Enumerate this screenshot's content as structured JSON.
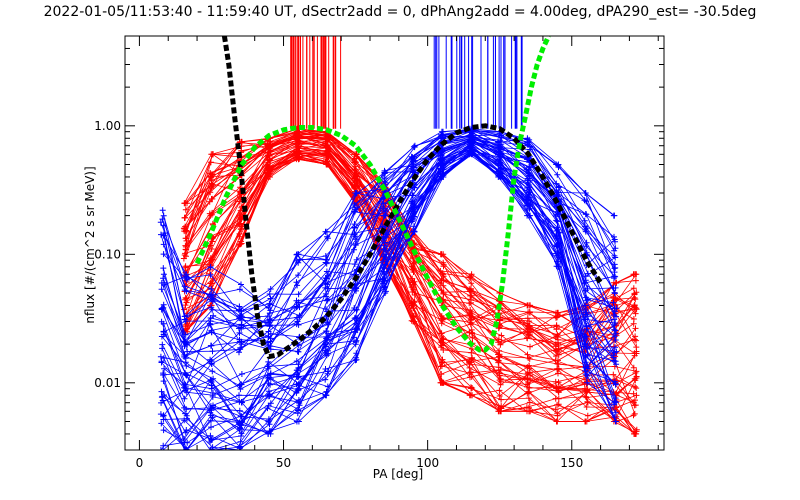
{
  "chart_data": {
    "type": "line",
    "title": "2022-01-05/11:53:40 - 11:59:40 UT, dSectr2add = 0, dPhAng2add = 4.00deg, dPA290_est= -30.5deg",
    "xlabel": "PA [deg]",
    "ylabel": "nflux [#/(cm^2 s sr MeV)]",
    "xlim": [
      -5,
      182
    ],
    "ylim": [
      0.003,
      5.0
    ],
    "yscale": "log",
    "grid": false,
    "x_ticks": [
      0,
      50,
      100,
      150
    ],
    "x_tick_labels": [
      "0",
      "50",
      "100",
      "150"
    ],
    "y_ticks": [
      0.01,
      0.1,
      1.0
    ],
    "y_tick_labels": [
      "0.01",
      "0.10",
      "1.00"
    ],
    "colors": {
      "red": "#ff0000",
      "blue": "#0000ff",
      "black": "#000000",
      "green": "#00ee00"
    },
    "series": [
      {
        "color": "#ff0000",
        "style": "thin lines with + markers (many spectra)",
        "x": [
          16,
          25,
          35,
          45,
          55,
          65,
          75,
          85,
          95,
          105,
          115,
          125,
          135,
          145,
          155,
          165,
          172
        ],
        "y_upper": [
          0.25,
          0.6,
          0.75,
          0.8,
          0.95,
          0.9,
          0.6,
          0.35,
          0.15,
          0.1,
          0.07,
          0.05,
          0.04,
          0.035,
          0.04,
          0.06,
          0.07
        ],
        "y_lower": [
          0.025,
          0.04,
          0.12,
          0.4,
          0.55,
          0.5,
          0.25,
          0.08,
          0.03,
          0.01,
          0.008,
          0.006,
          0.006,
          0.005,
          0.005,
          0.005,
          0.004
        ],
        "peak_markers_x": [
          52,
          70
        ]
      },
      {
        "color": "#0000ff",
        "style": "thin lines with + markers (many spectra)",
        "x": [
          8,
          16,
          25,
          35,
          45,
          55,
          65,
          75,
          85,
          95,
          105,
          115,
          125,
          135,
          145,
          155,
          165
        ],
        "y_upper": [
          0.22,
          0.07,
          0.08,
          0.06,
          0.06,
          0.1,
          0.15,
          0.3,
          0.5,
          0.7,
          0.9,
          0.95,
          0.9,
          0.8,
          0.5,
          0.3,
          0.2
        ],
        "y_lower": [
          0.003,
          0.003,
          0.003,
          0.003,
          0.004,
          0.005,
          0.008,
          0.015,
          0.05,
          0.15,
          0.4,
          0.6,
          0.4,
          0.2,
          0.08,
          0.01,
          0.005
        ],
        "peak_markers_x": [
          102,
          133
        ]
      },
      {
        "color": "#000000",
        "style": "thick dashed fit",
        "x": [
          29.5,
          31,
          33,
          35,
          37,
          39,
          41,
          43,
          45,
          48,
          52,
          56,
          60,
          65,
          70,
          75,
          80,
          85,
          90,
          95,
          100,
          105,
          110,
          115,
          120,
          125,
          130,
          135,
          140,
          145,
          150,
          155,
          160
        ],
        "y": [
          5.0,
          3.0,
          1.2,
          0.5,
          0.18,
          0.07,
          0.033,
          0.02,
          0.016,
          0.0165,
          0.019,
          0.022,
          0.026,
          0.033,
          0.045,
          0.065,
          0.1,
          0.16,
          0.25,
          0.38,
          0.55,
          0.72,
          0.88,
          0.97,
          1.0,
          0.95,
          0.8,
          0.6,
          0.4,
          0.25,
          0.15,
          0.09,
          0.06
        ]
      },
      {
        "color": "#00ee00",
        "style": "thick dashed fit",
        "x": [
          20,
          25,
          30,
          35,
          40,
          45,
          50,
          55,
          60,
          65,
          70,
          75,
          80,
          85,
          90,
          95,
          100,
          105,
          110,
          115,
          118,
          120,
          122,
          124,
          126,
          128,
          130,
          132,
          134,
          136,
          138,
          140,
          142
        ],
        "y": [
          0.085,
          0.15,
          0.28,
          0.48,
          0.68,
          0.84,
          0.93,
          0.97,
          0.97,
          0.93,
          0.84,
          0.7,
          0.5,
          0.32,
          0.19,
          0.11,
          0.065,
          0.04,
          0.027,
          0.02,
          0.018,
          0.018,
          0.02,
          0.03,
          0.06,
          0.15,
          0.4,
          0.75,
          1.2,
          2.0,
          3.0,
          4.0,
          5.0
        ]
      }
    ]
  }
}
